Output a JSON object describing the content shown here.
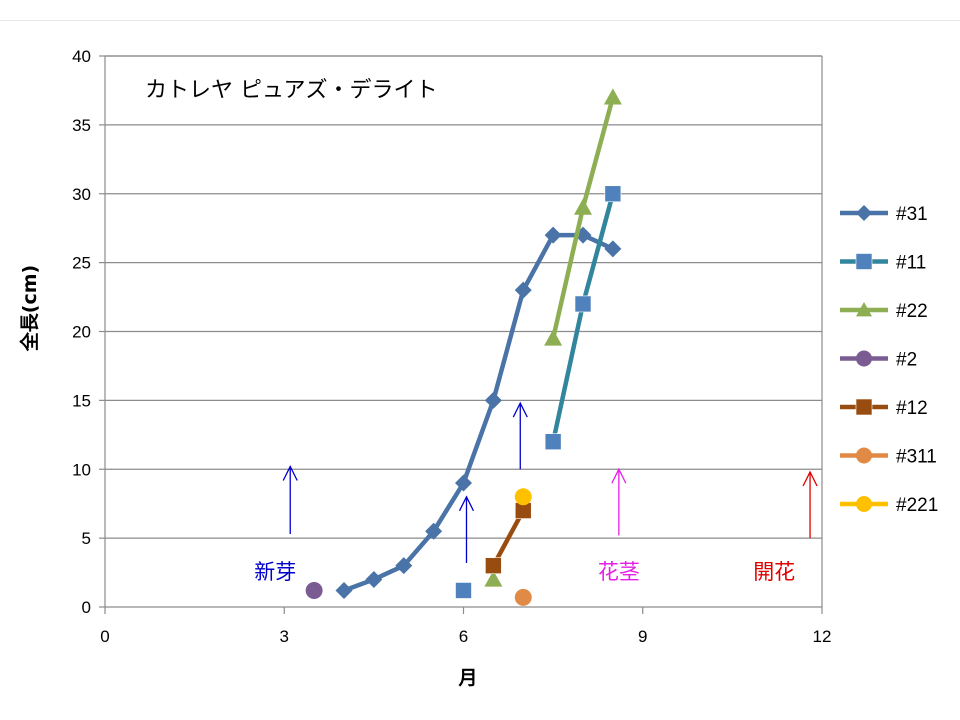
{
  "chart_data": {
    "type": "scatter",
    "title": "カトレヤ ピュアズ・デライト",
    "xlabel": "月",
    "ylabel": "全長(cm)",
    "xlim": [
      0,
      12
    ],
    "ylim": [
      0,
      40
    ],
    "x_ticks": [
      0,
      3,
      6,
      9,
      12
    ],
    "y_ticks": [
      0,
      5,
      10,
      15,
      20,
      25,
      30,
      35,
      40
    ],
    "grid": "horizontal",
    "legend_position": "right",
    "series": [
      {
        "name": "#31",
        "marker": "diamond",
        "color": "#4A73A8",
        "x": [
          4,
          4.5,
          5,
          5.5,
          6,
          6.5,
          7,
          7.5,
          8,
          8.5
        ],
        "y": [
          1.2,
          2,
          3,
          5.5,
          9,
          15,
          23,
          27,
          27,
          26
        ]
      },
      {
        "name": "#11",
        "marker": "square",
        "color": "#31859C",
        "marker_color": "#4F81BD",
        "x": [
          6,
          7.5,
          8,
          8.5
        ],
        "y": [
          1.2,
          12,
          22,
          30
        ],
        "segments": [
          [
            1,
            2,
            3
          ]
        ]
      },
      {
        "name": "#22",
        "marker": "triangle",
        "color": "#8DAE52",
        "x": [
          6.5,
          7.5,
          8,
          8.5
        ],
        "y": [
          2,
          19.5,
          29,
          37
        ],
        "segments": [
          [
            1,
            2,
            3
          ]
        ]
      },
      {
        "name": "#2",
        "marker": "circle",
        "color": "#7A5C93",
        "x": [
          3.5
        ],
        "y": [
          1.2
        ]
      },
      {
        "name": "#12",
        "marker": "square",
        "color": "#994C0F",
        "x": [
          6.5,
          7
        ],
        "y": [
          3,
          7
        ]
      },
      {
        "name": "#311",
        "marker": "circle",
        "color": "#E08A46",
        "x": [
          7
        ],
        "y": [
          0.7
        ]
      },
      {
        "name": "#221",
        "marker": "circle",
        "color": "#FFC000",
        "x": [
          7
        ],
        "y": [
          8
        ]
      }
    ],
    "annotations": [
      {
        "text": "新芽",
        "color": "#0000CC",
        "arrows": [
          {
            "x": 3.1,
            "y0": 5.3,
            "y1": 10.2
          },
          {
            "x": 6.05,
            "y0": 3.2,
            "y1": 8
          }
        ]
      },
      {
        "text": "",
        "color": "#0000CC",
        "arrows": [
          {
            "x": 6.95,
            "y0": 10,
            "y1": 14.8
          }
        ]
      },
      {
        "text": "花茎",
        "color": "#E61EE6",
        "arrows": [
          {
            "x": 8.6,
            "y0": 5.2,
            "y1": 10
          }
        ]
      },
      {
        "text": "開花",
        "color": "#E00000",
        "arrows": [
          {
            "x": 11.8,
            "y0": 5,
            "y1": 9.8
          }
        ]
      }
    ],
    "annotation_label_positions": [
      {
        "label": "新芽",
        "x": 2.85,
        "y": 2.6
      },
      {
        "label": "花茎",
        "x": 8.6,
        "y": 2.6
      },
      {
        "label": "開花",
        "x": 11.2,
        "y": 2.6
      }
    ]
  }
}
